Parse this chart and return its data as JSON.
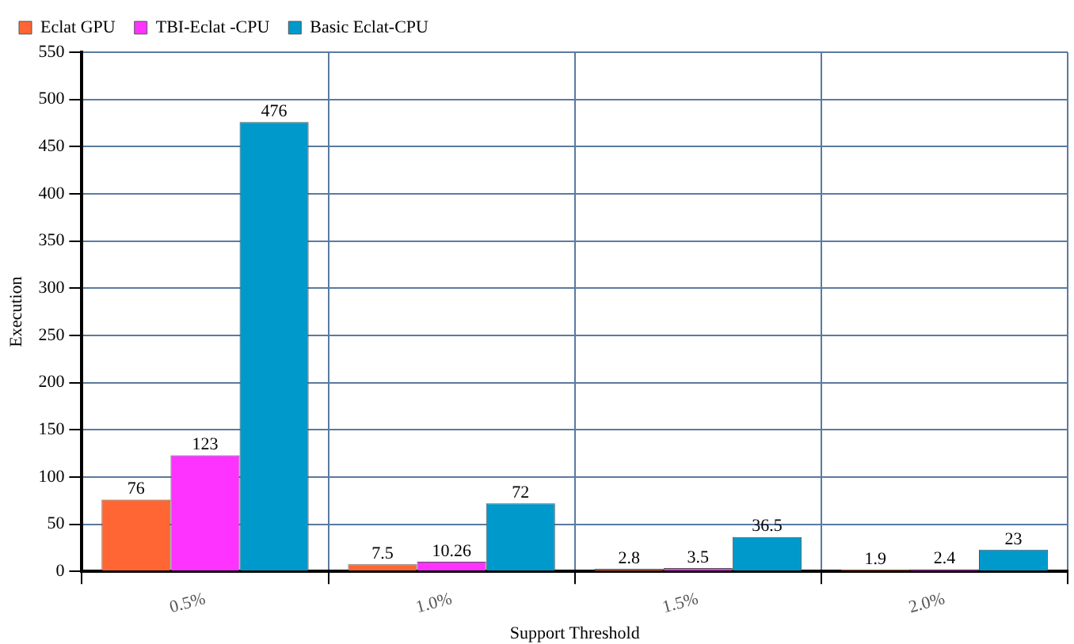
{
  "chart_data": {
    "type": "bar",
    "xlabel": "Support Threshold",
    "ylabel": "Execution",
    "categories": [
      "0.5%",
      "1.0%",
      "1.5%",
      "2.0%"
    ],
    "series": [
      {
        "name": "Eclat GPU",
        "color": "#ff6633",
        "values": [
          76,
          7.5,
          2.8,
          1.9
        ]
      },
      {
        "name": "TBI-Eclat -CPU",
        "color": "#ff33ff",
        "values": [
          123,
          10.26,
          3.5,
          2.4
        ]
      },
      {
        "name": "Basic Eclat-CPU",
        "color": "#0099cc",
        "values": [
          476,
          72,
          36.5,
          23
        ]
      }
    ],
    "ylim": [
      0,
      550
    ],
    "yticks": [
      0,
      50,
      100,
      150,
      200,
      250,
      300,
      350,
      400,
      450,
      500,
      550
    ],
    "grid": true,
    "legend": "top left",
    "data_labels": true
  }
}
